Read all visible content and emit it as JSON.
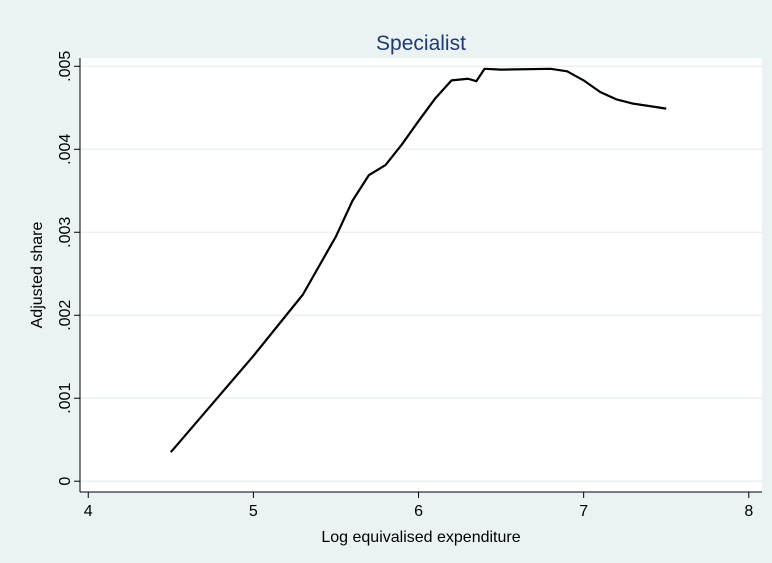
{
  "chart_data": {
    "type": "line",
    "title": "Specialist",
    "x_label": "Log equivalised expenditure",
    "y_label": "Adjusted share",
    "x": [
      4.5,
      4.75,
      5.0,
      5.3,
      5.5,
      5.6,
      5.7,
      5.8,
      5.9,
      6.0,
      6.1,
      6.2,
      6.3,
      6.35,
      6.4,
      6.5,
      6.8,
      6.9,
      7.0,
      7.1,
      7.2,
      7.3,
      7.5
    ],
    "series": [
      {
        "color": "#000000",
        "values": [
          0.00035,
          0.00093,
          0.00151,
          0.00225,
          0.00295,
          0.00338,
          0.00369,
          0.00381,
          0.00406,
          0.00434,
          0.00461,
          0.00483,
          0.00485,
          0.00482,
          0.00497,
          0.00496,
          0.00497,
          0.00494,
          0.00483,
          0.00469,
          0.0046,
          0.00455,
          0.00449
        ]
      }
    ],
    "xlim": [
      3.95,
      8.08
    ],
    "ylim": [
      -0.00013,
      0.0051
    ],
    "xticks": [
      4,
      5,
      6,
      7,
      8
    ],
    "yticks": [
      0,
      {
        "value": 0.001,
        "label": ".001"
      },
      {
        "value": 0.002,
        "label": ".002"
      },
      {
        "value": 0.003,
        "label": ".003"
      },
      {
        "value": 0.004,
        "label": ".004"
      },
      {
        "value": 0.005,
        "label": ".005"
      }
    ],
    "grid": true
  }
}
